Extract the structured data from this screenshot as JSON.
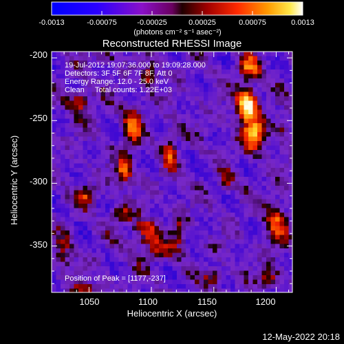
{
  "colorbar": {
    "tick_labels": [
      "-0.0013",
      "-0.00075",
      "-0.00025",
      "0.00025",
      "0.00075",
      "0.0013"
    ],
    "unit_label": "(photons cm⁻² s⁻¹ asec⁻²)"
  },
  "chart_data": {
    "type": "heatmap",
    "title": "Reconstructed RHESSI Image",
    "xlabel": "Heliocentric X (arcsec)",
    "ylabel": "Heliocentric Y (arcsec)",
    "xlim": [
      1020,
      1213
    ],
    "ylim": [
      -387,
      -195
    ],
    "x_ticks": [
      "1050",
      "1100",
      "1150",
      "1200"
    ],
    "y_ticks": [
      "-200",
      "-250",
      "-300",
      "-350"
    ],
    "colormap": "black-blue-red-yellow-white",
    "value_range": [
      -0.0013,
      0.0013
    ],
    "annotations": [
      "19-Jul-2012 19:07:36.000 to 19:09:28.000",
      "Detectors: 3F 5F 6F 7F 8F, Att 0",
      "Energy Range: 12.0 - 25.0 keV",
      "Clean     Total counts: 1.22E+03"
    ],
    "peak_label": "Position of Peak = [1177,-237]",
    "peak": {
      "x": 1177,
      "y": -237
    },
    "hotspots": [
      {
        "x": 1177,
        "y": -237,
        "amp": 1.0,
        "sx": 6,
        "sy": 9
      },
      {
        "x": 1182,
        "y": -262,
        "amp": 0.75,
        "sx": 7,
        "sy": 9
      },
      {
        "x": 1178,
        "y": -208,
        "amp": 0.6,
        "sx": 6,
        "sy": 7
      },
      {
        "x": 1043,
        "y": -235,
        "amp": 0.55,
        "sx": 6,
        "sy": 6
      },
      {
        "x": 1048,
        "y": -310,
        "amp": 0.45,
        "sx": 6,
        "sy": 5
      },
      {
        "x": 1078,
        "y": -290,
        "amp": 0.6,
        "sx": 5,
        "sy": 8
      },
      {
        "x": 1085,
        "y": -255,
        "amp": 0.5,
        "sx": 5,
        "sy": 12
      },
      {
        "x": 1098,
        "y": -215,
        "amp": 0.55,
        "sx": 4,
        "sy": 6
      },
      {
        "x": 1115,
        "y": -275,
        "amp": 0.45,
        "sx": 4,
        "sy": 12
      },
      {
        "x": 1095,
        "y": -340,
        "amp": 0.5,
        "sx": 8,
        "sy": 8
      },
      {
        "x": 1075,
        "y": -325,
        "amp": 0.45,
        "sx": 6,
        "sy": 5
      },
      {
        "x": 1105,
        "y": -355,
        "amp": 0.35,
        "sx": 9,
        "sy": 5
      },
      {
        "x": 1200,
        "y": -330,
        "amp": 0.5,
        "sx": 6,
        "sy": 14
      },
      {
        "x": 1195,
        "y": -375,
        "amp": 0.45,
        "sx": 6,
        "sy": 5
      },
      {
        "x": 1150,
        "y": -375,
        "amp": 0.4,
        "sx": 6,
        "sy": 5
      },
      {
        "x": 1122,
        "y": -340,
        "amp": 0.4,
        "sx": 4,
        "sy": 10
      },
      {
        "x": 1160,
        "y": -300,
        "amp": 0.3,
        "sx": 4,
        "sy": 6
      },
      {
        "x": 1030,
        "y": -355,
        "amp": 0.35,
        "sx": 5,
        "sy": 10
      },
      {
        "x": 1048,
        "y": -385,
        "amp": 0.35,
        "sx": 8,
        "sy": 4
      },
      {
        "x": 1205,
        "y": -255,
        "amp": 0.35,
        "sx": 5,
        "sy": 6
      },
      {
        "x": 1062,
        "y": -200,
        "amp": 0.3,
        "sx": 6,
        "sy": 4
      }
    ]
  },
  "footer": {
    "date": "12-May-2022 20:18"
  }
}
